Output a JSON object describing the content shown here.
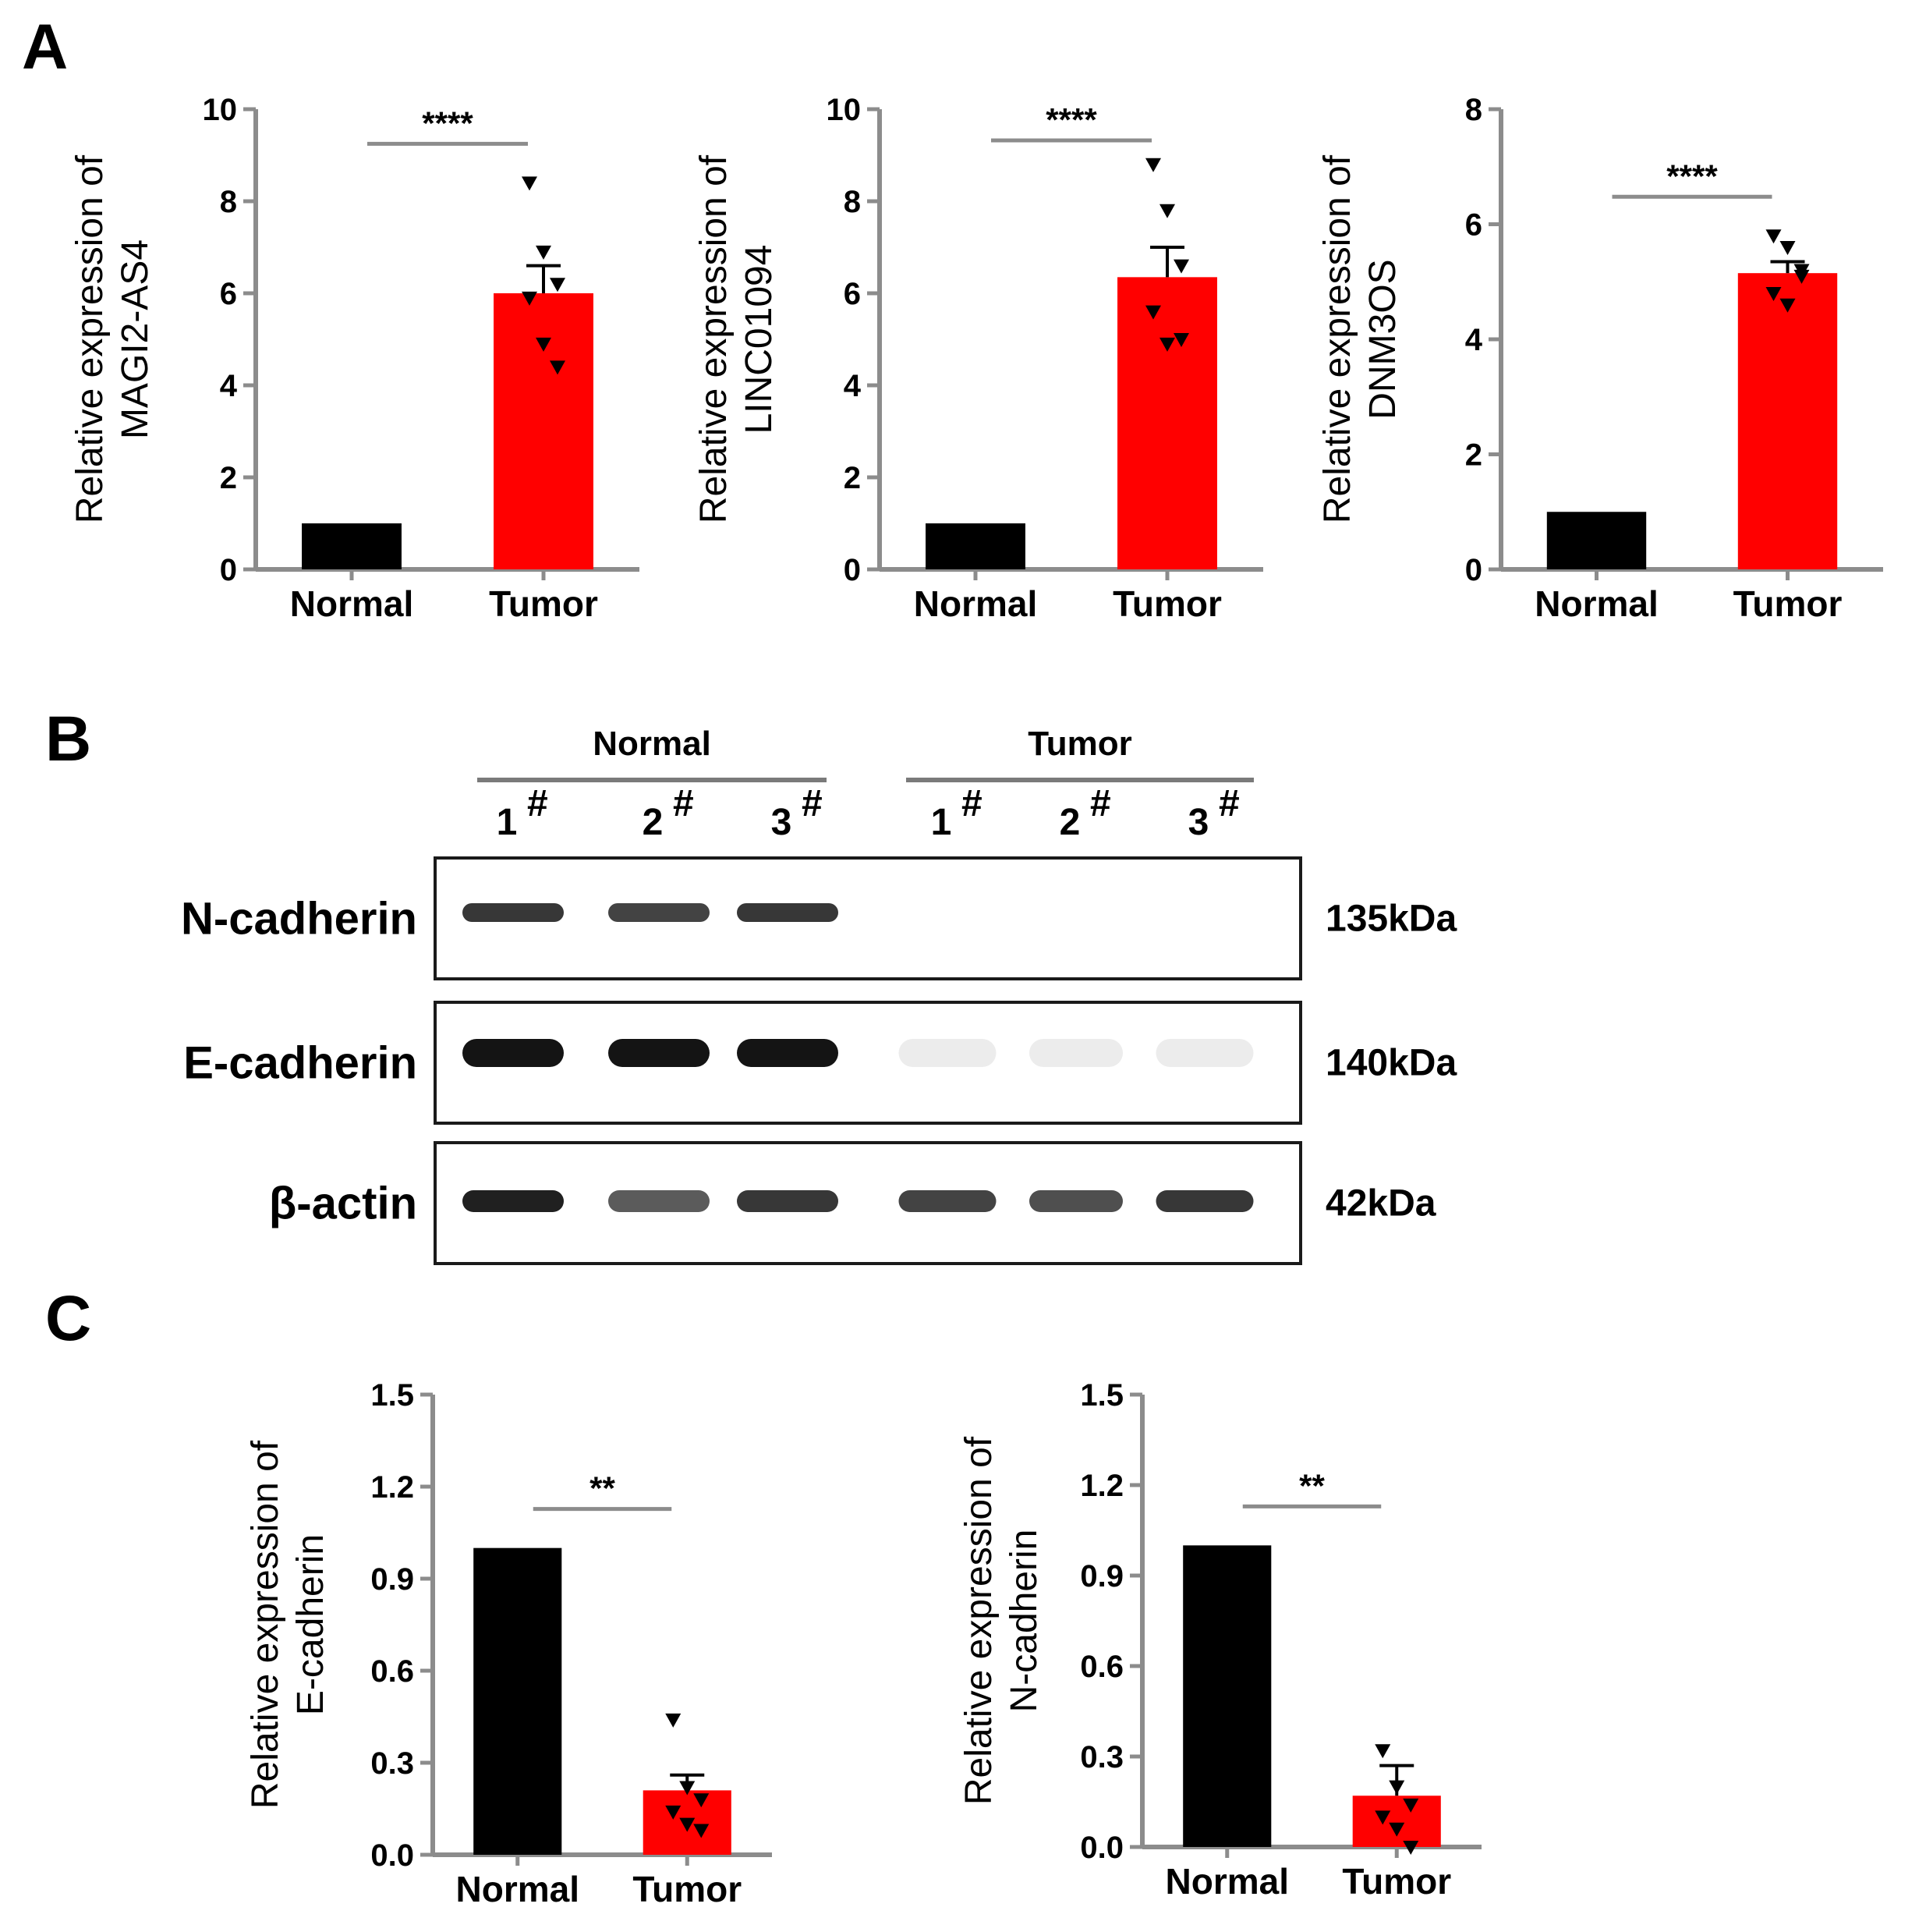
{
  "panels": {
    "A": "A",
    "B": "B",
    "C": "C"
  },
  "chart_data": [
    {
      "type": "bar",
      "panel": "A",
      "categories": [
        "Normal",
        "Tumor"
      ],
      "values": [
        1.0,
        6.0
      ],
      "error": [
        0,
        0.6
      ],
      "points": [
        [],
        [
          8.4,
          6.9,
          6.2,
          5.9,
          4.9,
          4.4
        ]
      ],
      "colors": [
        "#000000",
        "#ff0000"
      ],
      "ylabel": [
        "Relative expression of",
        "MAGI2-AS4"
      ],
      "ylim": [
        0,
        10
      ],
      "yticks": [
        "0",
        "2",
        "4",
        "6",
        "8",
        "10"
      ],
      "significance": "****"
    },
    {
      "type": "bar",
      "panel": "A",
      "categories": [
        "Normal",
        "Tumor"
      ],
      "values": [
        1.0,
        6.35
      ],
      "error": [
        0,
        0.65
      ],
      "points": [
        [],
        [
          8.8,
          7.8,
          6.6,
          5.6,
          4.9,
          5.0
        ]
      ],
      "colors": [
        "#000000",
        "#ff0000"
      ],
      "ylabel": [
        "Relative expression of",
        "LINC01094"
      ],
      "ylim": [
        0,
        10
      ],
      "yticks": [
        "0",
        "2",
        "4",
        "6",
        "8",
        "10"
      ],
      "significance": "****"
    },
    {
      "type": "bar",
      "panel": "A",
      "categories": [
        "Normal",
        "Tumor"
      ],
      "values": [
        1.0,
        5.15
      ],
      "error": [
        0,
        0.2
      ],
      "points": [
        [],
        [
          5.8,
          5.6,
          5.1,
          4.8,
          4.6,
          5.2
        ]
      ],
      "colors": [
        "#000000",
        "#ff0000"
      ],
      "ylabel": [
        "Relative expression of",
        "DNM3OS"
      ],
      "ylim": [
        0,
        8
      ],
      "yticks": [
        "0",
        "2",
        "4",
        "6",
        "8"
      ],
      "significance": "****"
    },
    {
      "type": "bar",
      "panel": "C",
      "categories": [
        "Normal",
        "Tumor"
      ],
      "values": [
        1.0,
        0.21
      ],
      "error": [
        0,
        0.05
      ],
      "points": [
        [],
        [
          0.44,
          0.22,
          0.18,
          0.14,
          0.1,
          0.08
        ]
      ],
      "colors": [
        "#000000",
        "#ff0000"
      ],
      "ylabel": [
        "Relative expression of",
        "E-cadherin"
      ],
      "ylim": [
        0,
        1.5
      ],
      "yticks": [
        "0.0",
        "0.3",
        "0.6",
        "0.9",
        "1.2",
        "1.5"
      ],
      "significance": "**"
    },
    {
      "type": "bar",
      "panel": "C",
      "categories": [
        "Normal",
        "Tumor"
      ],
      "values": [
        1.0,
        0.17
      ],
      "error": [
        0,
        0.1
      ],
      "points": [
        [],
        [
          0.32,
          0.2,
          0.14,
          0.1,
          0.06,
          0.0
        ]
      ],
      "colors": [
        "#000000",
        "#ff0000"
      ],
      "ylabel": [
        "Relative expression of",
        "N-cadherin"
      ],
      "ylim": [
        0,
        1.5
      ],
      "yticks": [
        "0.0",
        "0.3",
        "0.6",
        "0.9",
        "1.2",
        "1.5"
      ],
      "significance": "**"
    }
  ],
  "western_blot": {
    "groups": [
      "Normal",
      "Tumor"
    ],
    "lanes": [
      "1",
      "2",
      "3",
      "1",
      "2",
      "3"
    ],
    "lane_mark": "#",
    "rows": [
      {
        "protein": "N-cadherin",
        "kda": "135kDa",
        "intensities": [
          0.85,
          0.8,
          0.85,
          0.0,
          0.0,
          0.0
        ]
      },
      {
        "protein": "E-cadherin",
        "kda": "140kDa",
        "intensities": [
          1.0,
          1.0,
          1.0,
          0.08,
          0.08,
          0.08
        ]
      },
      {
        "protein": "β-actin",
        "kda": "42kDa",
        "intensities": [
          0.95,
          0.7,
          0.85,
          0.8,
          0.75,
          0.85
        ]
      }
    ]
  }
}
